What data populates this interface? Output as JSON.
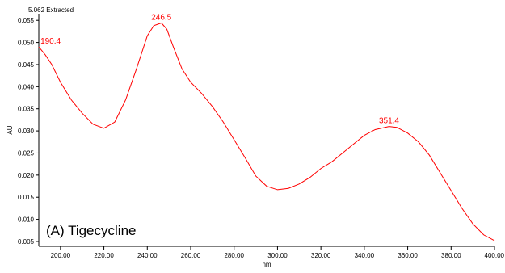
{
  "header": "5.062 Extracted",
  "sample_label": "(A) Tigecycline",
  "colors": {
    "spectrum": "#ff0000",
    "axis": "#000000",
    "background": "#ffffff"
  },
  "chart_data": {
    "type": "line",
    "title": "",
    "xlabel": "nm",
    "ylabel": "AU",
    "xlim": [
      190,
      400
    ],
    "ylim": [
      0.0039,
      0.0565
    ],
    "x_ticks": [
      200,
      220,
      240,
      260,
      280,
      300,
      320,
      340,
      360,
      380,
      400
    ],
    "x_tick_labels": [
      "200.00",
      "220.00",
      "240.00",
      "260.00",
      "280.00",
      "300.00",
      "320.00",
      "340.00",
      "360.00",
      "380.00",
      "400.00"
    ],
    "y_ticks": [
      0.005,
      0.01,
      0.015,
      0.02,
      0.025,
      0.03,
      0.035,
      0.04,
      0.045,
      0.05,
      0.055
    ],
    "y_tick_labels": [
      "0.005",
      "0.010",
      "0.015",
      "0.020",
      "0.025",
      "0.030",
      "0.035",
      "0.040",
      "0.045",
      "0.050",
      "0.055"
    ],
    "grid": false,
    "series": [
      {
        "x": [
          190,
          193,
          196,
          200,
          205,
          210,
          215,
          220,
          225,
          230,
          235,
          240,
          243,
          246.5,
          249,
          252,
          256,
          260,
          265,
          270,
          275,
          280,
          285,
          290,
          295,
          300,
          305,
          310,
          315,
          320,
          325,
          330,
          335,
          340,
          345,
          351.4,
          355,
          360,
          365,
          370,
          375,
          380,
          385,
          390,
          395,
          400
        ],
        "y": [
          0.049,
          0.0472,
          0.045,
          0.041,
          0.037,
          0.034,
          0.0315,
          0.0306,
          0.032,
          0.037,
          0.044,
          0.0515,
          0.0538,
          0.0544,
          0.053,
          0.049,
          0.044,
          0.041,
          0.0385,
          0.0355,
          0.032,
          0.028,
          0.024,
          0.0198,
          0.0175,
          0.0167,
          0.017,
          0.018,
          0.0195,
          0.0215,
          0.023,
          0.025,
          0.027,
          0.029,
          0.0303,
          0.031,
          0.0308,
          0.0295,
          0.0275,
          0.0245,
          0.0205,
          0.0165,
          0.0125,
          0.009,
          0.0065,
          0.0052
        ]
      }
    ],
    "peak_labels": [
      {
        "x": 190.4,
        "y": 0.049,
        "text": "190.4"
      },
      {
        "x": 246.5,
        "y": 0.0544,
        "text": "246.5"
      },
      {
        "x": 351.4,
        "y": 0.031,
        "text": "351.4"
      }
    ]
  }
}
